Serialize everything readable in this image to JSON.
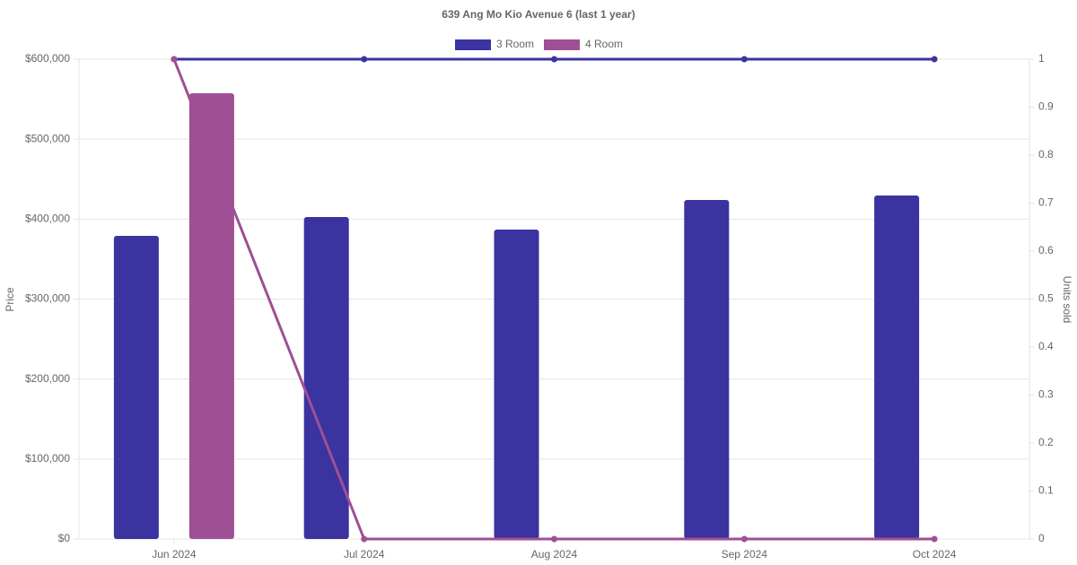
{
  "chart_data": {
    "type": "combo",
    "title": "639 Ang Mo Kio Avenue 6 (last 1 year)",
    "categories": [
      "Jun 2024",
      "Jul 2024",
      "Aug 2024",
      "Sep 2024",
      "Oct 2024"
    ],
    "series": [
      {
        "name": "3 Room",
        "color": "#3a33a0",
        "values": [
          379000,
          402600,
          386900,
          423900,
          429500
        ],
        "units_sold": [
          1,
          1,
          1,
          1,
          1
        ]
      },
      {
        "name": "4 Room",
        "color": "#9f4f93",
        "values": [
          557400,
          null,
          null,
          null,
          null
        ],
        "units_sold": [
          1,
          0,
          0,
          0,
          0
        ]
      }
    ],
    "y_label": "Price",
    "y2_label": "Units sold",
    "ylim": [
      0,
      600000
    ],
    "yticks": [
      {
        "value": 0,
        "label": "$0"
      },
      {
        "value": 100000,
        "label": "$100,000"
      },
      {
        "value": 200000,
        "label": "$200,000"
      },
      {
        "value": 300000,
        "label": "$300,000"
      },
      {
        "value": 400000,
        "label": "$400,000"
      },
      {
        "value": 500000,
        "label": "$500,000"
      },
      {
        "value": 600000,
        "label": "$600,000"
      }
    ],
    "y2lim": [
      0,
      1
    ],
    "y2ticks": [
      0,
      0.1,
      0.2,
      0.3,
      0.4,
      0.5,
      0.6,
      0.7,
      0.8,
      0.9,
      1
    ],
    "grid": true,
    "legend": "top"
  }
}
